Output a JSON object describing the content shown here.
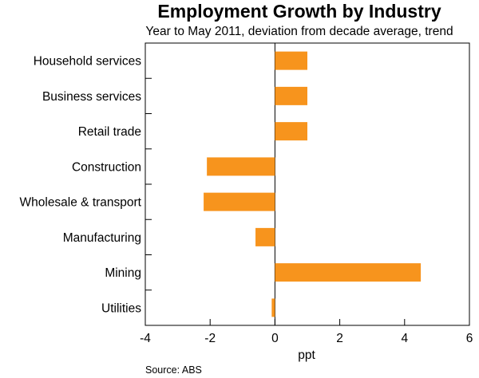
{
  "chart_data": {
    "type": "bar",
    "orientation": "horizontal",
    "title": "Employment Growth by Industry",
    "subtitle": "Year to May 2011, deviation from decade average, trend",
    "categories": [
      "Household services",
      "Business services",
      "Retail trade",
      "Construction",
      "Wholesale & transport",
      "Manufacturing",
      "Mining",
      "Utilities"
    ],
    "values": [
      1.0,
      1.0,
      1.0,
      -2.1,
      -2.2,
      -0.6,
      4.5,
      -0.1
    ],
    "xlabel": "ppt",
    "ylabel": "",
    "xlim": [
      -4,
      6
    ],
    "xticks": [
      "-4",
      "-2",
      "0",
      "2",
      "4",
      "6"
    ],
    "grid": false,
    "bar_color": "#f7941d",
    "source": "Source: ABS"
  }
}
